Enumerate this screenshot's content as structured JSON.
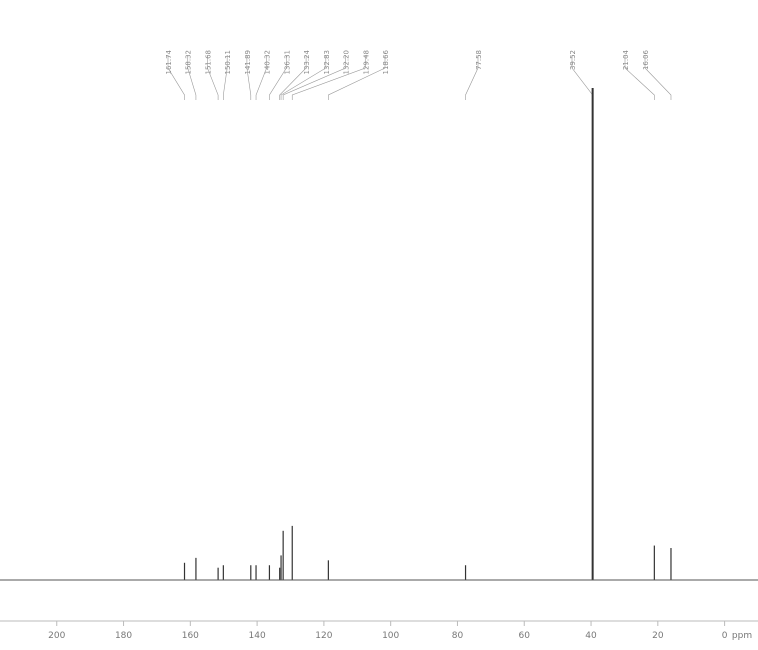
{
  "chart_data": {
    "type": "line",
    "title": "",
    "xlabel": "",
    "ylabel": "",
    "x_unit": "ppm",
    "xlim": [
      214,
      -10
    ],
    "x_reversed": true,
    "grid": false,
    "legend": "none",
    "x_ticks": [
      {
        "value": 200,
        "label": "200"
      },
      {
        "value": 180,
        "label": "180"
      },
      {
        "value": 160,
        "label": "160"
      },
      {
        "value": 140,
        "label": "140"
      },
      {
        "value": 120,
        "label": "120"
      },
      {
        "value": 100,
        "label": "100"
      },
      {
        "value": 80,
        "label": "80"
      },
      {
        "value": 60,
        "label": "60"
      },
      {
        "value": 40,
        "label": "40"
      },
      {
        "value": 20,
        "label": "20"
      },
      {
        "value": 0,
        "label": "0"
      },
      {
        "value": -8,
        "label": "ppm"
      }
    ],
    "peaks": [
      {
        "shift": 161.74,
        "label": "161.74",
        "height": 0.035
      },
      {
        "shift": 158.32,
        "label": "158.32",
        "height": 0.045
      },
      {
        "shift": 151.68,
        "label": "151.68",
        "height": 0.025
      },
      {
        "shift": 150.11,
        "label": "150.11",
        "height": 0.03
      },
      {
        "shift": 141.89,
        "label": "141.89",
        "height": 0.03
      },
      {
        "shift": 140.32,
        "label": "140.32",
        "height": 0.03
      },
      {
        "shift": 136.31,
        "label": "136.31",
        "height": 0.03
      },
      {
        "shift": 133.24,
        "label": "133.24",
        "height": 0.025
      },
      {
        "shift": 132.83,
        "label": "132.83",
        "height": 0.05
      },
      {
        "shift": 132.2,
        "label": "132.20",
        "height": 0.1
      },
      {
        "shift": 129.48,
        "label": "129.48",
        "height": 0.11
      },
      {
        "shift": 118.66,
        "label": "118.66",
        "height": 0.04
      },
      {
        "shift": 77.58,
        "label": "77.58",
        "height": 0.03
      },
      {
        "shift": 39.52,
        "label": "39.52",
        "height": 1.0
      },
      {
        "shift": 21.04,
        "label": "21.04",
        "height": 0.07
      },
      {
        "shift": 16.06,
        "label": "16.06",
        "height": 0.065
      }
    ]
  }
}
